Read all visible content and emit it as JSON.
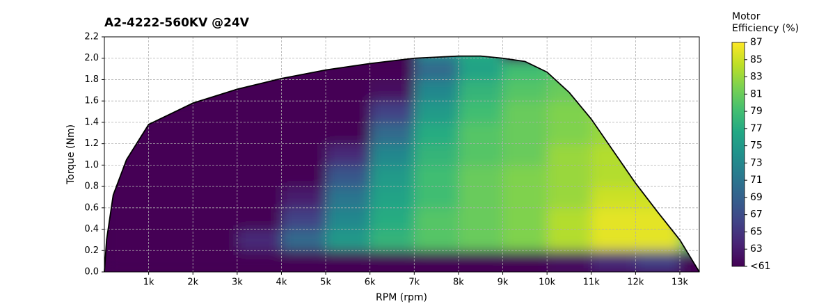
{
  "chart_data": {
    "type": "heatmap",
    "title": "A2-4222-560KV @24V",
    "x_label": "RPM (rpm)",
    "y_label": "Torque (Nm)",
    "colorbar_label": "Motor Efficiency (%)",
    "colormap": "viridis",
    "grid": true,
    "xlim": [
      0,
      13440
    ],
    "ylim": [
      0,
      2.2
    ],
    "xticks": [
      {
        "value": 1000,
        "label": "1k"
      },
      {
        "value": 2000,
        "label": "2k"
      },
      {
        "value": 3000,
        "label": "3k"
      },
      {
        "value": 4000,
        "label": "4k"
      },
      {
        "value": 5000,
        "label": "5k"
      },
      {
        "value": 6000,
        "label": "6k"
      },
      {
        "value": 7000,
        "label": "7k"
      },
      {
        "value": 8000,
        "label": "8k"
      },
      {
        "value": 9000,
        "label": "9k"
      },
      {
        "value": 10000,
        "label": "10k"
      },
      {
        "value": 11000,
        "label": "11k"
      },
      {
        "value": 12000,
        "label": "12k"
      },
      {
        "value": 13000,
        "label": "13k"
      }
    ],
    "yticks": [
      {
        "value": 0,
        "label": "0.0"
      },
      0.2,
      0.4,
      0.6,
      0.8,
      {
        "value": 1,
        "label": "1.0"
      },
      1.2,
      1.4,
      1.6,
      1.8,
      {
        "value": 2,
        "label": "2.0"
      },
      2.2
    ],
    "clim": [
      61,
      87
    ],
    "cticks": [
      {
        "value": 61,
        "label": "<61"
      },
      63,
      65,
      67,
      69,
      71,
      73,
      75,
      77,
      79,
      81,
      83,
      85,
      87
    ],
    "x_bins": [
      0,
      1000,
      2000,
      3000,
      4000,
      5000,
      6000,
      7000,
      8000,
      9000,
      10000,
      11000,
      12000,
      13000,
      14000
    ],
    "y_bins": [
      0,
      0.2,
      0.4,
      0.6,
      0.8,
      1.0,
      1.2,
      1.4,
      1.6,
      1.8,
      2.0,
      2.2
    ],
    "z": [
      [
        50,
        50,
        50,
        50,
        50,
        50,
        55,
        57,
        58,
        60,
        62,
        64,
        66,
        60
      ],
      [
        50,
        50,
        50,
        64,
        70,
        75,
        78,
        80,
        81,
        82,
        84,
        86,
        86,
        80
      ],
      [
        50,
        50,
        50,
        55,
        66,
        73,
        77,
        80,
        81,
        82,
        84,
        86,
        86,
        null
      ],
      [
        50,
        50,
        50,
        50,
        63,
        71,
        76,
        79,
        81,
        82,
        83,
        85,
        85,
        null
      ],
      [
        50,
        50,
        50,
        50,
        58,
        68,
        75,
        79,
        81,
        82,
        83,
        84,
        84,
        null
      ],
      [
        50,
        50,
        50,
        50,
        50,
        64,
        73,
        78,
        80,
        81,
        83,
        84,
        null,
        null
      ],
      [
        50,
        50,
        50,
        50,
        50,
        58,
        70,
        77,
        80,
        81,
        82,
        83,
        null,
        null
      ],
      [
        null,
        50,
        50,
        50,
        50,
        52,
        66,
        75,
        79,
        81,
        82,
        83,
        null,
        null
      ],
      [
        null,
        null,
        50,
        50,
        50,
        50,
        62,
        73,
        78,
        80,
        81,
        null,
        null,
        null
      ],
      [
        null,
        null,
        null,
        50,
        50,
        50,
        58,
        70,
        76,
        79,
        80,
        null,
        null,
        null
      ],
      [
        null,
        null,
        null,
        null,
        null,
        null,
        null,
        74,
        77,
        null,
        null,
        null,
        null,
        null
      ]
    ],
    "boundary": {
      "color": "#000000",
      "x": [
        0,
        50,
        200,
        500,
        1000,
        2000,
        3000,
        4000,
        5000,
        6000,
        7000,
        8000,
        8500,
        9000,
        9500,
        10000,
        10500,
        11000,
        11500,
        12000,
        12500,
        13000,
        13440
      ],
      "y": [
        0,
        0.3,
        0.72,
        1.05,
        1.38,
        1.58,
        1.71,
        1.81,
        1.89,
        1.95,
        2.0,
        2.02,
        2.02,
        2.0,
        1.97,
        1.87,
        1.68,
        1.43,
        1.13,
        0.83,
        0.56,
        0.3,
        0
      ]
    }
  }
}
